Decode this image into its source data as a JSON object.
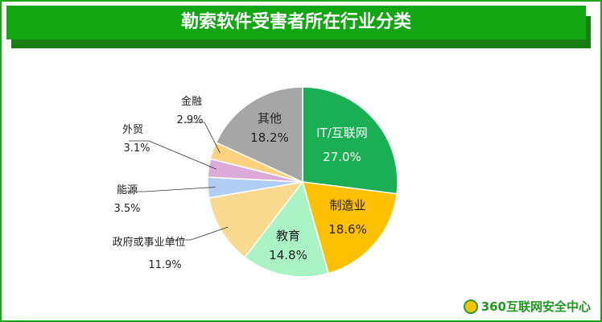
{
  "chart_data": {
    "type": "pie",
    "title": "勒索软件受害者所在行业分类",
    "start": "top",
    "direction": "clockwise",
    "slices": [
      {
        "label": "IT/互联网",
        "value": 27.0,
        "display": "27.0%",
        "color": "#1aaf54"
      },
      {
        "label": "制造业",
        "value": 18.6,
        "display": "18.6%",
        "color": "#ffc000"
      },
      {
        "label": "教育",
        "value": 14.8,
        "display": "14.8%",
        "color": "#a9f3c4"
      },
      {
        "label": "政府或事业单位",
        "value": 11.9,
        "display": "11.9%",
        "color": "#f9d98e"
      },
      {
        "label": "能源",
        "value": 3.5,
        "display": "3.5%",
        "color": "#b0cdf2"
      },
      {
        "label": "外贸",
        "value": 3.1,
        "display": "3.1%",
        "color": "#dcaad8"
      },
      {
        "label": "金融",
        "value": 2.9,
        "display": "2.9%",
        "color": "#ffd27f"
      },
      {
        "label": "其他",
        "value": 18.2,
        "display": "18.2%",
        "color": "#a6a6a6"
      }
    ]
  },
  "footer": {
    "logo_text": "360互联网安全中心"
  },
  "colors": {
    "frame": "#1aa51a",
    "title_bar": "#12a612"
  }
}
